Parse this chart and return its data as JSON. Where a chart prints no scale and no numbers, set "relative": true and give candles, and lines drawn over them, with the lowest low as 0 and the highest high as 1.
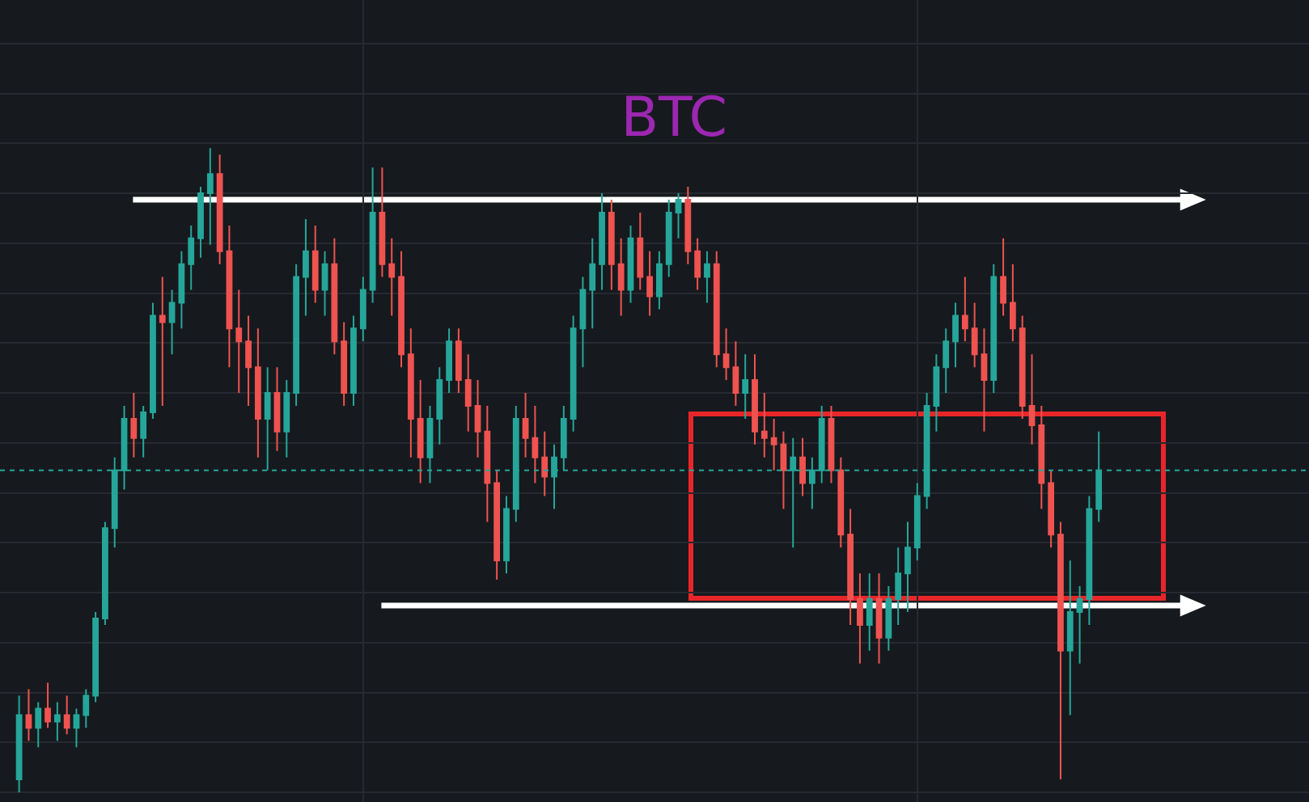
{
  "chart_data": {
    "type": "candlestick",
    "title": "BTC",
    "relative": true,
    "grid": true,
    "tick_labels": false,
    "categories": [
      null,
      null,
      null,
      null,
      null,
      null,
      null,
      null,
      null,
      null,
      null,
      null,
      null,
      null,
      null,
      null,
      null,
      null,
      null,
      null,
      null,
      null,
      null,
      null,
      null,
      null,
      null,
      null,
      null,
      null,
      null,
      null,
      null,
      null,
      null,
      null,
      null,
      null,
      null,
      null,
      null,
      null,
      null,
      null,
      null,
      null,
      null,
      null,
      null,
      null,
      null,
      null,
      null,
      null,
      null,
      null,
      null,
      null,
      null,
      null,
      null,
      null,
      null,
      null,
      null,
      null,
      null,
      null,
      null,
      null,
      null,
      null,
      null,
      null,
      null,
      null,
      null,
      null,
      null,
      null,
      null,
      null,
      null,
      null,
      null,
      null,
      null,
      null,
      null,
      null,
      null,
      null,
      null,
      null,
      null,
      null,
      null,
      null,
      null,
      null,
      null,
      null,
      null,
      null,
      null,
      null,
      null,
      null,
      null,
      null,
      null,
      null,
      null,
      null
    ],
    "ohlc": [
      [
        0.02,
        0.15,
        0,
        0.12
      ],
      [
        0.12,
        0.16,
        0.08,
        0.1
      ],
      [
        0.1,
        0.14,
        0.07,
        0.13
      ],
      [
        0.13,
        0.17,
        0.1,
        0.11
      ],
      [
        0.11,
        0.14,
        0.08,
        0.12
      ],
      [
        0.12,
        0.15,
        0.09,
        0.1
      ],
      [
        0.1,
        0.13,
        0.07,
        0.12
      ],
      [
        0.12,
        0.16,
        0.1,
        0.15
      ],
      [
        0.15,
        0.28,
        0.14,
        0.27
      ],
      [
        0.27,
        0.42,
        0.26,
        0.41
      ],
      [
        0.41,
        0.52,
        0.38,
        0.5
      ],
      [
        0.5,
        0.6,
        0.47,
        0.58
      ],
      [
        0.58,
        0.62,
        0.52,
        0.55
      ],
      [
        0.55,
        0.6,
        0.52,
        0.59
      ],
      [
        0.59,
        0.76,
        0.58,
        0.74
      ],
      [
        0.74,
        0.8,
        0.6,
        0.73
      ],
      [
        0.73,
        0.78,
        0.68,
        0.76
      ],
      [
        0.76,
        0.84,
        0.72,
        0.82
      ],
      [
        0.82,
        0.88,
        0.78,
        0.86
      ],
      [
        0.86,
        0.94,
        0.83,
        0.93
      ],
      [
        0.93,
        1.0,
        0.85,
        0.96
      ],
      [
        0.96,
        0.99,
        0.82,
        0.84
      ],
      [
        0.84,
        0.88,
        0.66,
        0.72
      ],
      [
        0.72,
        0.78,
        0.62,
        0.7
      ],
      [
        0.7,
        0.74,
        0.6,
        0.66
      ],
      [
        0.66,
        0.72,
        0.52,
        0.58
      ],
      [
        0.58,
        0.66,
        0.5,
        0.62
      ],
      [
        0.62,
        0.66,
        0.53,
        0.56
      ],
      [
        0.56,
        0.64,
        0.52,
        0.62
      ],
      [
        0.62,
        0.82,
        0.6,
        0.8
      ],
      [
        0.8,
        0.89,
        0.74,
        0.84
      ],
      [
        0.84,
        0.88,
        0.76,
        0.78
      ],
      [
        0.78,
        0.84,
        0.74,
        0.82
      ],
      [
        0.82,
        0.86,
        0.68,
        0.7
      ],
      [
        0.7,
        0.73,
        0.6,
        0.62
      ],
      [
        0.62,
        0.74,
        0.6,
        0.72
      ],
      [
        0.72,
        0.8,
        0.7,
        0.78
      ],
      [
        0.78,
        0.97,
        0.76,
        0.9
      ],
      [
        0.9,
        0.97,
        0.8,
        0.82
      ],
      [
        0.82,
        0.86,
        0.74,
        0.8
      ],
      [
        0.8,
        0.84,
        0.66,
        0.68
      ],
      [
        0.68,
        0.72,
        0.52,
        0.58
      ],
      [
        0.58,
        0.64,
        0.48,
        0.52
      ],
      [
        0.52,
        0.6,
        0.48,
        0.58
      ],
      [
        0.58,
        0.66,
        0.54,
        0.64
      ],
      [
        0.64,
        0.72,
        0.62,
        0.7
      ],
      [
        0.7,
        0.72,
        0.62,
        0.64
      ],
      [
        0.64,
        0.68,
        0.56,
        0.6
      ],
      [
        0.6,
        0.64,
        0.52,
        0.56
      ],
      [
        0.56,
        0.6,
        0.42,
        0.48
      ],
      [
        0.48,
        0.5,
        0.33,
        0.36
      ],
      [
        0.36,
        0.46,
        0.34,
        0.44
      ],
      [
        0.44,
        0.6,
        0.42,
        0.58
      ],
      [
        0.58,
        0.62,
        0.52,
        0.55
      ],
      [
        0.55,
        0.6,
        0.48,
        0.52
      ],
      [
        0.52,
        0.56,
        0.46,
        0.49
      ],
      [
        0.49,
        0.54,
        0.44,
        0.52
      ],
      [
        0.52,
        0.6,
        0.5,
        0.58
      ],
      [
        0.58,
        0.74,
        0.56,
        0.72
      ],
      [
        0.72,
        0.8,
        0.66,
        0.78
      ],
      [
        0.78,
        0.86,
        0.72,
        0.82
      ],
      [
        0.82,
        0.93,
        0.78,
        0.9
      ],
      [
        0.9,
        0.92,
        0.78,
        0.82
      ],
      [
        0.82,
        0.86,
        0.74,
        0.78
      ],
      [
        0.78,
        0.88,
        0.76,
        0.86
      ],
      [
        0.86,
        0.9,
        0.78,
        0.8
      ],
      [
        0.8,
        0.84,
        0.74,
        0.77
      ],
      [
        0.77,
        0.84,
        0.75,
        0.82
      ],
      [
        0.82,
        0.92,
        0.8,
        0.9
      ],
      [
        0.9,
        0.93,
        0.86,
        0.92
      ],
      [
        0.92,
        0.94,
        0.82,
        0.84
      ],
      [
        0.84,
        0.86,
        0.78,
        0.8
      ],
      [
        0.8,
        0.84,
        0.76,
        0.82
      ],
      [
        0.82,
        0.84,
        0.66,
        0.68
      ],
      [
        0.68,
        0.72,
        0.64,
        0.66
      ],
      [
        0.66,
        0.7,
        0.6,
        0.62
      ],
      [
        0.62,
        0.68,
        0.58,
        0.64
      ],
      [
        0.64,
        0.68,
        0.54,
        0.56
      ],
      [
        0.56,
        0.62,
        0.52,
        0.55
      ],
      [
        0.55,
        0.58,
        0.5,
        0.54
      ],
      [
        0.54,
        0.56,
        0.44,
        0.5
      ],
      [
        0.5,
        0.55,
        0.38,
        0.52
      ],
      [
        0.52,
        0.55,
        0.46,
        0.48
      ],
      [
        0.48,
        0.52,
        0.44,
        0.5
      ],
      [
        0.5,
        0.6,
        0.48,
        0.58
      ],
      [
        0.58,
        0.6,
        0.48,
        0.5
      ],
      [
        0.5,
        0.52,
        0.38,
        0.4
      ],
      [
        0.4,
        0.44,
        0.26,
        0.3
      ],
      [
        0.3,
        0.34,
        0.2,
        0.26
      ],
      [
        0.26,
        0.34,
        0.22,
        0.3
      ],
      [
        0.3,
        0.34,
        0.2,
        0.24
      ],
      [
        0.24,
        0.32,
        0.22,
        0.3
      ],
      [
        0.3,
        0.38,
        0.26,
        0.34
      ],
      [
        0.34,
        0.42,
        0.28,
        0.38
      ],
      [
        0.38,
        0.48,
        0.36,
        0.46
      ],
      [
        0.46,
        0.62,
        0.44,
        0.6
      ],
      [
        0.6,
        0.68,
        0.56,
        0.66
      ],
      [
        0.66,
        0.72,
        0.62,
        0.7
      ],
      [
        0.7,
        0.76,
        0.66,
        0.74
      ],
      [
        0.74,
        0.8,
        0.7,
        0.72
      ],
      [
        0.72,
        0.76,
        0.66,
        0.68
      ],
      [
        0.68,
        0.72,
        0.56,
        0.64
      ],
      [
        0.64,
        0.82,
        0.62,
        0.8
      ],
      [
        0.8,
        0.86,
        0.74,
        0.76
      ],
      [
        0.76,
        0.82,
        0.7,
        0.72
      ],
      [
        0.72,
        0.74,
        0.58,
        0.6
      ],
      [
        0.6,
        0.68,
        0.54,
        0.57
      ],
      [
        0.57,
        0.6,
        0.44,
        0.48
      ],
      [
        0.48,
        0.5,
        0.38,
        0.4
      ],
      [
        0.4,
        0.42,
        0.02,
        0.22
      ],
      [
        0.22,
        0.36,
        0.12,
        0.28
      ],
      [
        0.28,
        0.32,
        0.2,
        0.3
      ],
      [
        0.3,
        0.46,
        0.26,
        0.44
      ],
      [
        0.44,
        0.56,
        0.42,
        0.5
      ]
    ],
    "ref_lines": [
      {
        "axis": "y",
        "value": 0.92,
        "color": "#ffffff",
        "line_style": "solid"
      },
      {
        "axis": "y",
        "value": 0.29,
        "color": "#ffffff",
        "line_style": "solid"
      },
      {
        "axis": "y",
        "value": 0.5,
        "color": "#26a69a",
        "line_style": "dotted"
      }
    ]
  }
}
